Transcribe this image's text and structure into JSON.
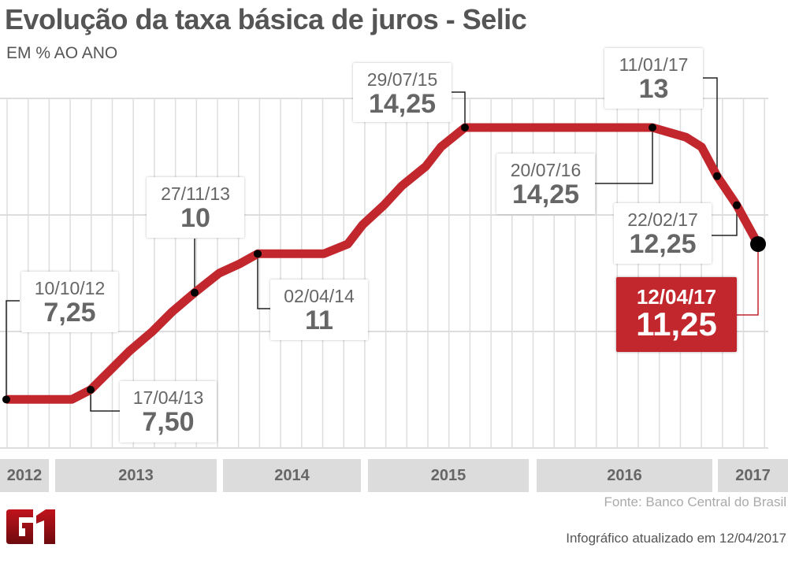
{
  "title": "Evolução da taxa básica de juros - Selic",
  "subtitle": "EM % AO ANO",
  "source": "Fonte: Banco Central do Brasil",
  "updated": "Infográfico atualizado em 12/04/2017",
  "logo_text": "G1",
  "colors": {
    "line": "#c1272d",
    "highlight": "#c1272d",
    "grid": "#dddddd",
    "text": "#555555"
  },
  "chart_data": {
    "type": "line",
    "title": "Evolução da taxa básica de juros - Selic",
    "ylabel": "EM % AO ANO",
    "ylim": [
      6,
      15
    ],
    "grid": true,
    "x_tick_labels": [
      "2012",
      "2013",
      "2014",
      "2015",
      "2016",
      "2017"
    ],
    "series": [
      {
        "points": [
          {
            "date": "2012-10-10",
            "value": 7.25
          },
          {
            "date": "2013-03-06",
            "value": 7.25
          },
          {
            "date": "2013-04-17",
            "value": 7.5
          },
          {
            "date": "2013-05-29",
            "value": 8.0
          },
          {
            "date": "2013-07-10",
            "value": 8.5
          },
          {
            "date": "2013-08-28",
            "value": 9.0
          },
          {
            "date": "2013-10-09",
            "value": 9.5
          },
          {
            "date": "2013-11-27",
            "value": 10.0
          },
          {
            "date": "2014-01-15",
            "value": 10.5
          },
          {
            "date": "2014-02-26",
            "value": 10.75
          },
          {
            "date": "2014-04-02",
            "value": 11.0
          },
          {
            "date": "2014-09-03",
            "value": 11.0
          },
          {
            "date": "2014-10-29",
            "value": 11.25
          },
          {
            "date": "2014-12-03",
            "value": 11.75
          },
          {
            "date": "2015-01-21",
            "value": 12.25
          },
          {
            "date": "2015-03-04",
            "value": 12.75
          },
          {
            "date": "2015-04-29",
            "value": 13.25
          },
          {
            "date": "2015-06-03",
            "value": 13.75
          },
          {
            "date": "2015-07-29",
            "value": 14.25
          },
          {
            "date": "2016-07-20",
            "value": 14.25
          },
          {
            "date": "2016-10-19",
            "value": 14.0
          },
          {
            "date": "2016-11-30",
            "value": 13.75
          },
          {
            "date": "2017-01-11",
            "value": 13.0
          },
          {
            "date": "2017-02-22",
            "value": 12.25
          },
          {
            "date": "2017-04-12",
            "value": 11.25
          }
        ]
      }
    ],
    "annotations": [
      {
        "date": "2012-10-10",
        "label_date": "10/10/12",
        "label_value": "7,25"
      },
      {
        "date": "2013-04-17",
        "label_date": "17/04/13",
        "label_value": "7,50"
      },
      {
        "date": "2013-11-27",
        "label_date": "27/11/13",
        "label_value": "10"
      },
      {
        "date": "2014-04-02",
        "label_date": "02/04/14",
        "label_value": "11"
      },
      {
        "date": "2015-07-29",
        "label_date": "29/07/15",
        "label_value": "14,25"
      },
      {
        "date": "2016-07-20",
        "label_date": "20/07/16",
        "label_value": "14,25"
      },
      {
        "date": "2017-01-11",
        "label_date": "11/01/17",
        "label_value": "13"
      },
      {
        "date": "2017-02-22",
        "label_date": "22/02/17",
        "label_value": "12,25"
      },
      {
        "date": "2017-04-12",
        "label_date": "12/04/17",
        "label_value": "11,25",
        "highlight": true
      }
    ]
  }
}
